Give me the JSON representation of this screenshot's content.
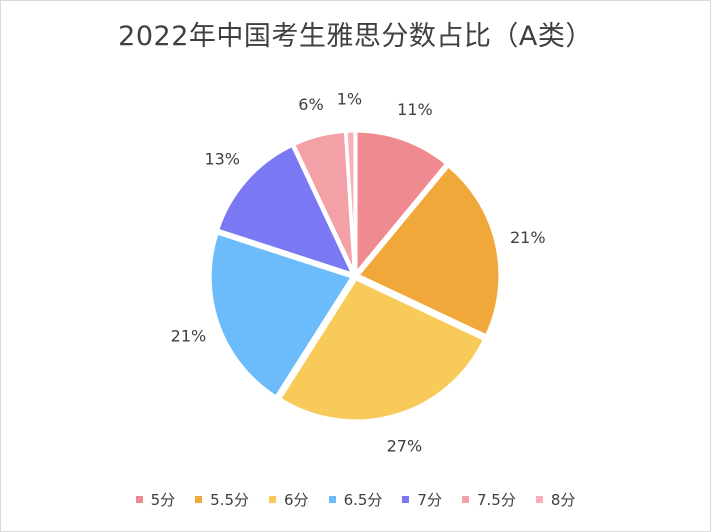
{
  "chart_data": {
    "type": "pie",
    "title": "2022年中国考生雅思分数占比（A类）",
    "slices": [
      {
        "name": "5分",
        "value": 11,
        "label": "11%",
        "color": "#f08a91"
      },
      {
        "name": "5.5分",
        "value": 21,
        "label": "21%",
        "color": "#f0a83a"
      },
      {
        "name": "6分",
        "value": 27,
        "label": "27%",
        "color": "#f8ca5a"
      },
      {
        "name": "6.5分",
        "value": 21,
        "label": "21%",
        "color": "#6cbcfc"
      },
      {
        "name": "7分",
        "value": 13,
        "label": "13%",
        "color": "#7b78f3"
      },
      {
        "name": "7.5分",
        "value": 6,
        "label": "6%",
        "color": "#f3a0a6"
      },
      {
        "name": "8分",
        "value": 1,
        "label": "1%",
        "color": "#f6b0b6"
      }
    ],
    "legend_position": "bottom"
  }
}
